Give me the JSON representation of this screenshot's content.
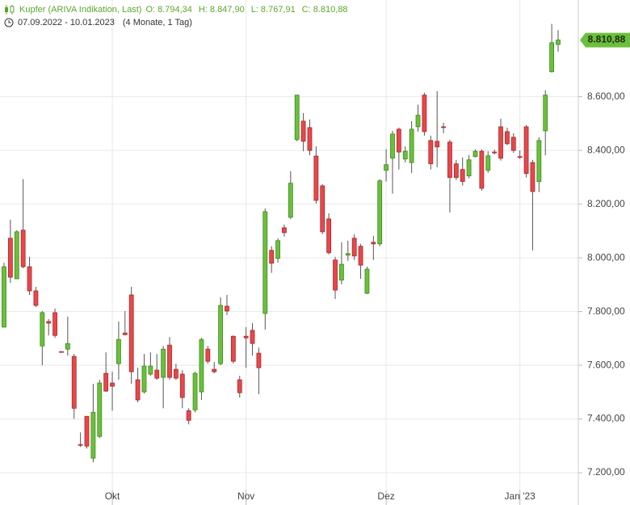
{
  "chart_data": {
    "type": "candlestick",
    "title": "Kupfer (ARIVA Indikation, Last)",
    "ohlc_labels": [
      {
        "key": "O:",
        "label": "8.794,34"
      },
      {
        "key": "H:",
        "label": "8.847,90"
      },
      {
        "key": "L:",
        "label": "8.767,91"
      },
      {
        "key": "C:",
        "label": "8.810,88"
      }
    ],
    "date_range": "07.09.2022 - 10.01.2023",
    "period": "(4 Monate, 1 Tag)",
    "categories": [
      null,
      null,
      null,
      null,
      null,
      null,
      null,
      null,
      null,
      null,
      null,
      null,
      null,
      null,
      null,
      null,
      null,
      "Okt",
      null,
      null,
      null,
      null,
      null,
      null,
      null,
      null,
      null,
      null,
      null,
      null,
      null,
      null,
      null,
      null,
      null,
      null,
      null,
      null,
      "Nov",
      null,
      null,
      null,
      null,
      null,
      null,
      null,
      null,
      null,
      null,
      null,
      null,
      null,
      null,
      null,
      null,
      null,
      null,
      null,
      null,
      null,
      "Dez",
      null,
      null,
      null,
      null,
      null,
      null,
      null,
      null,
      null,
      null,
      null,
      null,
      null,
      null,
      null,
      null,
      null,
      null,
      null,
      null,
      "Jan '23",
      null,
      null,
      null,
      null,
      null,
      null
    ],
    "open": [
      7742,
      8073,
      7922,
      8103,
      7967,
      7877,
      7672,
      7763,
      7796,
      7651,
      7660,
      7633,
      7305,
      7410,
      7254,
      7335,
      7570,
      7534,
      7606,
      7720,
      7862,
      7546,
      7501,
      7567,
      7582,
      7555,
      7675,
      7585,
      7567,
      7431,
      7434,
      7501,
      7660,
      7585,
      7606,
      7820,
      7708,
      7546,
      7708,
      7730,
      7645,
      7793,
      8028,
      7998,
      8112,
      8151,
      8440,
      8509,
      8485,
      8379,
      8268,
      8145,
      7992,
      7917,
      8010,
      8073,
      8043,
      7868,
      8058,
      8052,
      8326,
      8371,
      8479,
      8368,
      8355,
      8488,
      8606,
      8437,
      8434,
      8488,
      8431,
      8350,
      8329,
      8305,
      8377,
      8397,
      8326,
      8394,
      8488,
      8470,
      8449,
      8377,
      8488,
      8355,
      8284,
      8473,
      8693,
      8794.34
    ],
    "high": [
      7982,
      8142,
      8103,
      8293,
      8004,
      7892,
      7802,
      7772,
      7811,
      7651,
      7781,
      7642,
      7350,
      7410,
      7531,
      7546,
      7648,
      7576,
      7763,
      7802,
      7892,
      7591,
      7642,
      7648,
      7642,
      7672,
      7705,
      7606,
      7582,
      7440,
      7576,
      7702,
      7672,
      7612,
      7853,
      7862,
      7711,
      7561,
      7742,
      7757,
      7666,
      8184,
      8043,
      8073,
      8124,
      8323,
      8606,
      8539,
      8515,
      8415,
      8274,
      8166,
      8004,
      8058,
      8064,
      8088,
      8052,
      7967,
      8082,
      8293,
      8404,
      8473,
      8485,
      8415,
      8509,
      8570,
      8615,
      8455,
      8621,
      8503,
      8440,
      8365,
      8374,
      8383,
      8404,
      8404,
      8397,
      8403,
      8518,
      8485,
      8464,
      8400,
      8494,
      8365,
      8449,
      8624,
      8871,
      8847.9
    ],
    "low": [
      7742,
      7907,
      7922,
      7961,
      7862,
      7817,
      7600,
      7711,
      7702,
      7648,
      7636,
      7401,
      7296,
      7290,
      7239,
      7329,
      7501,
      7431,
      7546,
      7711,
      7531,
      7462,
      7495,
      7561,
      7546,
      7440,
      7546,
      7546,
      7440,
      7380,
      7425,
      7471,
      7606,
      7570,
      7600,
      7787,
      7606,
      7480,
      7591,
      7636,
      7492,
      7733,
      7944,
      7982,
      8079,
      8145,
      8434,
      8397,
      8382,
      8202,
      8088,
      8013,
      7847,
      7901,
      7989,
      7992,
      7922,
      7865,
      7992,
      8043,
      8284,
      8239,
      8329,
      8355,
      8316,
      8470,
      8455,
      8329,
      8337,
      8464,
      8169,
      8290,
      8269,
      8296,
      8374,
      8250,
      8317,
      8385,
      8362,
      8419,
      8391,
      8368,
      8299,
      8028,
      8245,
      8382,
      8690,
      8767.91
    ],
    "close": [
      7967,
      7928,
      8097,
      7967,
      7877,
      7823,
      7796,
      7757,
      7711,
      7648,
      7681,
      7440,
      7302,
      7299,
      7425,
      7534,
      7504,
      7522,
      7696,
      7714,
      7576,
      7471,
      7597,
      7597,
      7552,
      7660,
      7555,
      7552,
      7480,
      7395,
      7570,
      7696,
      7615,
      7576,
      7823,
      7802,
      7615,
      7498,
      7702,
      7681,
      7591,
      8172,
      7980,
      8064,
      8094,
      8278,
      8606,
      8434,
      8400,
      8214,
      8097,
      8019,
      7880,
      7976,
      8016,
      8007,
      7973,
      7958,
      8052,
      8287,
      8347,
      8461,
      8394,
      8397,
      8479,
      8531,
      8470,
      8350,
      8413,
      8485,
      8299,
      8299,
      8284,
      8365,
      8397,
      8259,
      8380,
      8391,
      8371,
      8425,
      8400,
      8374,
      8314,
      8247,
      8437,
      8606,
      8801,
      8810.88
    ],
    "up_color": "#6cbf3c",
    "down_color": "#e8474b",
    "last_price": {
      "value": 8810.88,
      "label": "8.810,88"
    },
    "ylim": [
      7140,
      8960
    ],
    "yticks": [
      {
        "value": 7200,
        "label": "7.200,00"
      },
      {
        "value": 7400,
        "label": "7.400,00"
      },
      {
        "value": 7600,
        "label": "7.600,00"
      },
      {
        "value": 7800,
        "label": "7.800,00"
      },
      {
        "value": 8000,
        "label": "8.000,00"
      },
      {
        "value": 8200,
        "label": "8.200,00"
      },
      {
        "value": 8400,
        "label": "8.400,00"
      },
      {
        "value": 8600,
        "label": "8.600,00"
      }
    ],
    "grid": true
  }
}
